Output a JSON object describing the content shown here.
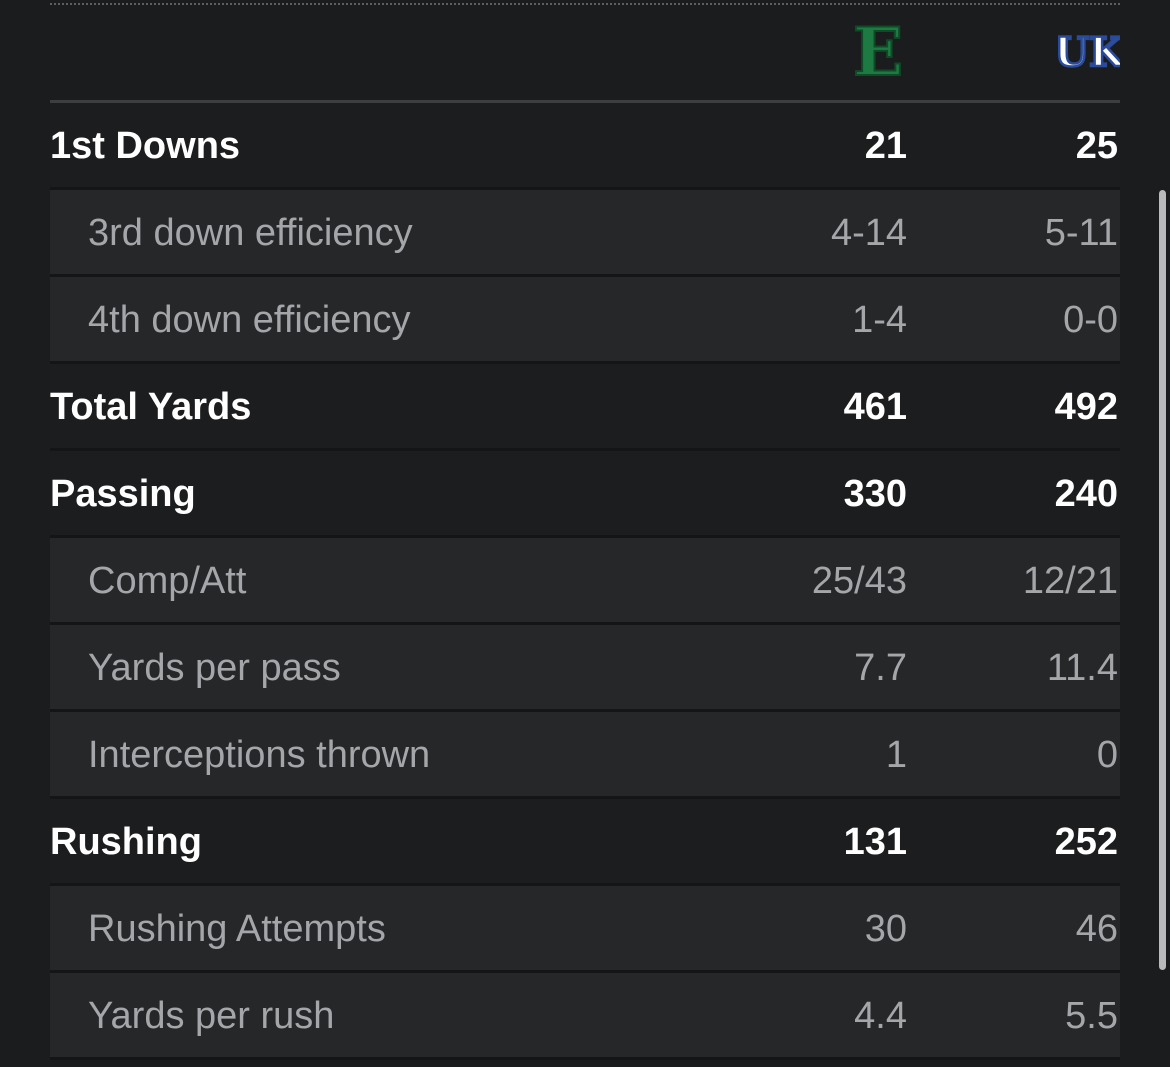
{
  "teams": {
    "away": {
      "logo_text": "E",
      "logo_icon": "eastern-michigan-logo",
      "color": "#1e7a43"
    },
    "home": {
      "logo_text": "UK",
      "logo_icon": "kentucky-logo",
      "color": "#2a4b9b"
    }
  },
  "stats": [
    {
      "label": "1st Downs",
      "away": "21",
      "home": "25",
      "kind": "main"
    },
    {
      "label": "3rd down efficiency",
      "away": "4-14",
      "home": "5-11",
      "kind": "sub"
    },
    {
      "label": "4th down efficiency",
      "away": "1-4",
      "home": "0-0",
      "kind": "sub"
    },
    {
      "label": "Total Yards",
      "away": "461",
      "home": "492",
      "kind": "main"
    },
    {
      "label": "Passing",
      "away": "330",
      "home": "240",
      "kind": "main"
    },
    {
      "label": "Comp/Att",
      "away": "25/43",
      "home": "12/21",
      "kind": "sub"
    },
    {
      "label": "Yards per pass",
      "away": "7.7",
      "home": "11.4",
      "kind": "sub"
    },
    {
      "label": "Interceptions thrown",
      "away": "1",
      "home": "0",
      "kind": "sub"
    },
    {
      "label": "Rushing",
      "away": "131",
      "home": "252",
      "kind": "main"
    },
    {
      "label": "Rushing Attempts",
      "away": "30",
      "home": "46",
      "kind": "sub"
    },
    {
      "label": "Yards per rush",
      "away": "4.4",
      "home": "5.5",
      "kind": "sub"
    }
  ]
}
